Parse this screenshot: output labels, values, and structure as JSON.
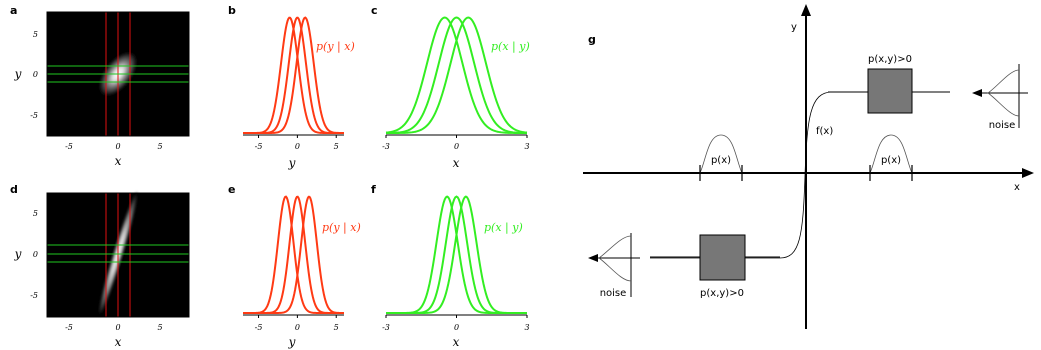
{
  "panels": {
    "a": {
      "label": "a",
      "xlabel": "x",
      "ylabel": "y",
      "xticks": [
        "-5",
        "0",
        "5"
      ],
      "yticks": [
        "5",
        "0",
        "-5"
      ]
    },
    "b": {
      "label": "b",
      "xlabel": "y",
      "curve_label": "p(y | x)",
      "xticks": [
        "-5",
        "0",
        "5"
      ],
      "color": "#ff3a14"
    },
    "c": {
      "label": "c",
      "xlabel": "x",
      "curve_label": "p(x | y)",
      "xticks": [
        "-3",
        "0",
        "3"
      ],
      "color": "#33ee22"
    },
    "d": {
      "label": "d",
      "xlabel": "x",
      "ylabel": "y",
      "xticks": [
        "-5",
        "0",
        "5"
      ],
      "yticks": [
        "5",
        "0",
        "-5"
      ]
    },
    "e": {
      "label": "e",
      "xlabel": "y",
      "curve_label": "p(y | x)",
      "xticks": [
        "-5",
        "0",
        "5"
      ],
      "color": "#ff3a14"
    },
    "f": {
      "label": "f",
      "xlabel": "x",
      "curve_label": "p(x | y)",
      "xticks": [
        "-3",
        "0",
        "3"
      ],
      "color": "#33ee22"
    },
    "g": {
      "label": "g",
      "x_axis": "x",
      "y_axis": "y",
      "function_label": "f(x)",
      "px_label": "p(x)",
      "joint_label": "p(x,y)>0",
      "noise_label": "noise"
    }
  },
  "chart_data": [
    {
      "panel": "b",
      "type": "line",
      "title": "",
      "xlabel": "y",
      "ylabel": "",
      "xlim": [
        -7,
        6
      ],
      "series": [
        {
          "name": "p(y | x)",
          "mean": -1.0,
          "sd": 1.1
        },
        {
          "name": "p(y | x)",
          "mean": 0.0,
          "sd": 1.1
        },
        {
          "name": "p(y | x)",
          "mean": 1.0,
          "sd": 1.1
        }
      ]
    },
    {
      "panel": "c",
      "type": "line",
      "title": "",
      "xlabel": "x",
      "ylabel": "",
      "xlim": [
        -3,
        3
      ],
      "series": [
        {
          "name": "p(x | y)",
          "mean": -0.5,
          "sd": 0.75
        },
        {
          "name": "p(x | y)",
          "mean": 0.0,
          "sd": 0.75
        },
        {
          "name": "p(x | y)",
          "mean": 0.5,
          "sd": 0.75
        }
      ]
    },
    {
      "panel": "e",
      "type": "line",
      "title": "",
      "xlabel": "y",
      "ylabel": "",
      "xlim": [
        -7,
        6
      ],
      "series": [
        {
          "name": "p(y | x)",
          "mean": -1.5,
          "sd": 1.0
        },
        {
          "name": "p(y | x)",
          "mean": 0.0,
          "sd": 1.0
        },
        {
          "name": "p(y | x)",
          "mean": 1.5,
          "sd": 1.0
        }
      ]
    },
    {
      "panel": "f",
      "type": "line",
      "title": "",
      "xlabel": "x",
      "ylabel": "",
      "xlim": [
        -3,
        3
      ],
      "series": [
        {
          "name": "p(x | y)",
          "mean": -0.4,
          "sd": 0.45
        },
        {
          "name": "p(x | y)",
          "mean": 0.0,
          "sd": 0.45
        },
        {
          "name": "p(x | y)",
          "mean": 0.4,
          "sd": 0.45
        }
      ]
    }
  ]
}
